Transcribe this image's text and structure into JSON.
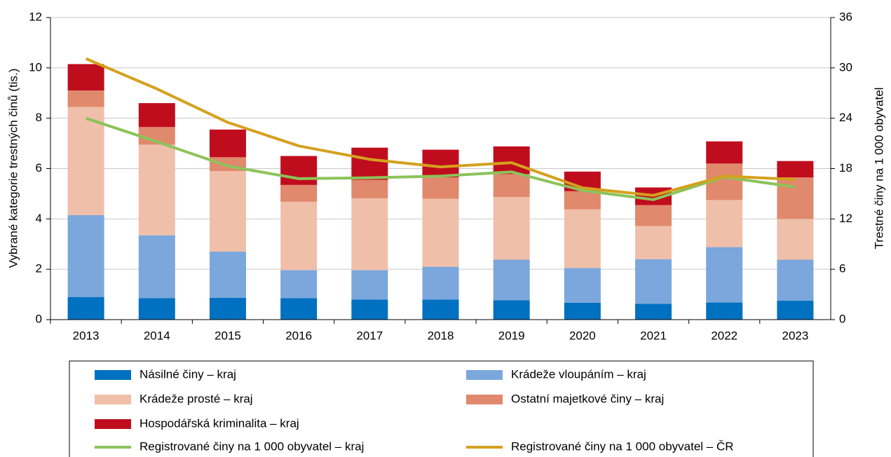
{
  "chart_data": {
    "type": "bar",
    "stacked": true,
    "ylabel": "Vybrané kategorie trestných činů (tis.)",
    "y2label": "Trestné činy na 1 000 obyvatel",
    "categories": [
      "2013",
      "2014",
      "2015",
      "2016",
      "2017",
      "2018",
      "2019",
      "2020",
      "2021",
      "2022",
      "2023"
    ],
    "ylim": [
      0,
      12
    ],
    "yticks": [
      0,
      2,
      4,
      6,
      8,
      10,
      12
    ],
    "y2lim": [
      0,
      36
    ],
    "y2ticks": [
      0,
      6,
      12,
      18,
      24,
      30,
      36
    ],
    "grid": true,
    "series": [
      {
        "name": "Násilné činy – kraj",
        "color": "#0070c0",
        "values": [
          0.9,
          0.85,
          0.87,
          0.85,
          0.8,
          0.8,
          0.77,
          0.67,
          0.63,
          0.68,
          0.75
        ]
      },
      {
        "name": "Krádeže vloupáním – kraj",
        "color": "#7ba7dc",
        "values": [
          3.25,
          2.5,
          1.83,
          1.12,
          1.17,
          1.3,
          1.61,
          1.38,
          1.77,
          2.2,
          1.63
        ]
      },
      {
        "name": "Krádeže prosté – kraj",
        "color": "#f0bfaa",
        "values": [
          4.3,
          3.6,
          3.2,
          2.71,
          2.85,
          2.7,
          2.49,
          2.33,
          1.32,
          1.87,
          1.62
        ]
      },
      {
        "name": "Ostatní majetkové činy – kraj",
        "color": "#e0896c",
        "values": [
          0.65,
          0.7,
          0.55,
          0.67,
          0.73,
          0.85,
          0.91,
          0.72,
          0.83,
          1.45,
          1.65
        ]
      },
      {
        "name": "Hospodářská kriminalita – kraj",
        "color": "#c00d1e",
        "values": [
          1.05,
          0.95,
          1.1,
          1.15,
          1.28,
          1.1,
          1.1,
          0.78,
          0.7,
          0.88,
          0.65
        ]
      },
      {
        "name": "Registrované činy na 1 000 obyvatel – kraj",
        "type": "line",
        "axis": "y2",
        "color": "#8cc35a",
        "values": [
          24.0,
          21.2,
          18.3,
          16.8,
          16.9,
          17.1,
          17.6,
          15.4,
          14.3,
          17.0,
          15.8
        ]
      },
      {
        "name": "Registrované činy na 1 000 obyvatel – ČR",
        "type": "line",
        "axis": "y2",
        "color": "#d4a11e",
        "values": [
          31.1,
          27.5,
          23.5,
          20.7,
          19.1,
          18.2,
          18.7,
          15.7,
          14.8,
          17.1,
          16.7
        ]
      }
    ]
  }
}
